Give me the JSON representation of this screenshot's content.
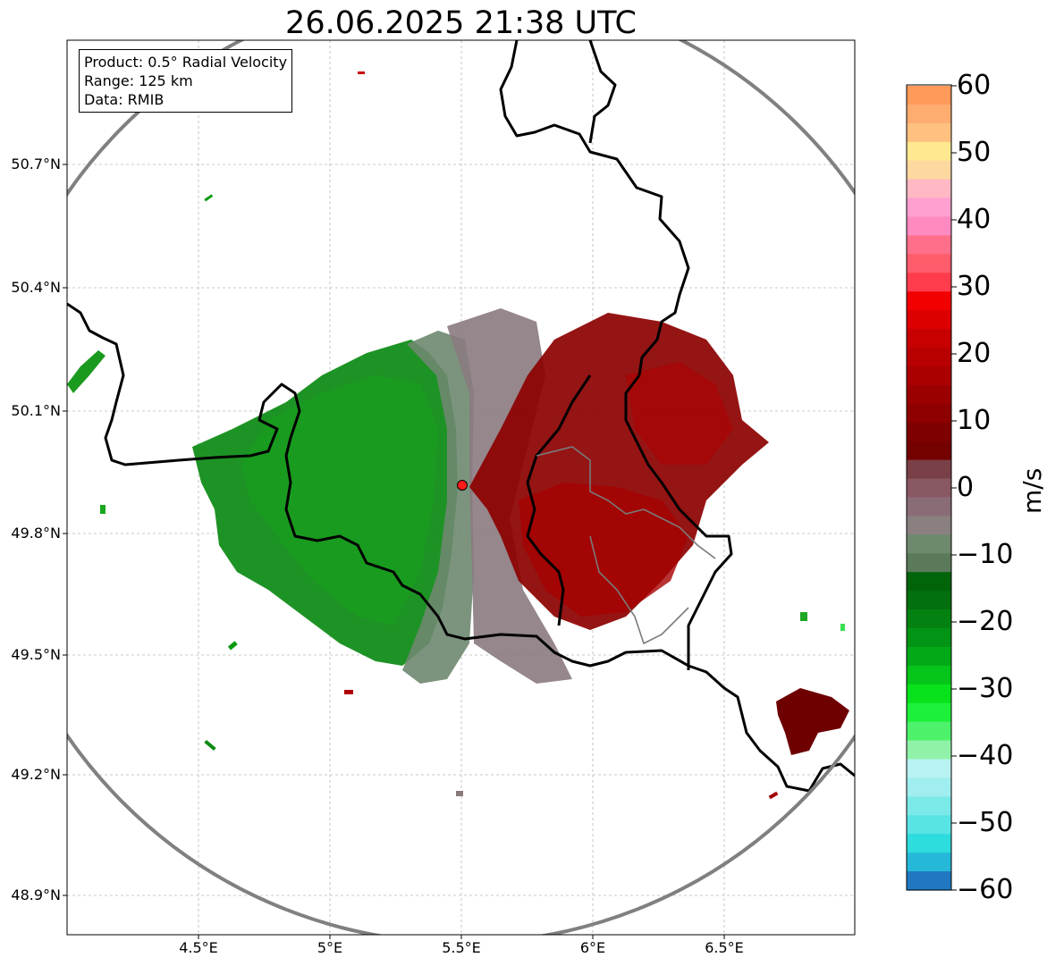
{
  "title": "26.06.2025 21:38 UTC",
  "info_box": {
    "product": "Product: 0.5° Radial Velocity",
    "range": "Range: 125 km",
    "data": "Data: RMIB"
  },
  "map": {
    "lat_labels": [
      "50.7°N",
      "50.4°N",
      "50.1°N",
      "49.8°N",
      "49.5°N",
      "49.2°N",
      "48.9°N"
    ],
    "lon_labels": [
      "4.5°E",
      "5°E",
      "5.5°E",
      "6°E",
      "6.5°E"
    ],
    "radar_site": {
      "lon": 5.5,
      "lat": 49.92
    },
    "range_ring_km": 125
  },
  "colorbar": {
    "unit": "m/s",
    "ticks": [
      "60",
      "50",
      "40",
      "30",
      "20",
      "10",
      "0",
      "−10",
      "−20",
      "−30",
      "−40",
      "−50",
      "−60"
    ],
    "range": [
      -60,
      60
    ],
    "colors": [
      "#1f78c1",
      "#25b8d8",
      "#2ddcdc",
      "#58e4e4",
      "#7ce9e9",
      "#a0eef0",
      "#b8f2f2",
      "#8ff2a8",
      "#4df26a",
      "#1df03a",
      "#07e21c",
      "#05c41a",
      "#03aa17",
      "#029414",
      "#038211",
      "#02700e",
      "#016409",
      "#5a7a5a",
      "#6e8a6e",
      "#8a8080",
      "#8a6c76",
      "#8a5862",
      "#7a4048",
      "#740000",
      "#7f0000",
      "#8e0000",
      "#9b0000",
      "#aa0000",
      "#b80000",
      "#c90000",
      "#dd0000",
      "#f20000",
      "#ff3c4c",
      "#ff5c6c",
      "#ff6f8a",
      "#ff8ac0",
      "#ffa0d0",
      "#ffb8c4",
      "#ffd8a0",
      "#ffe890",
      "#ffc080",
      "#ffac70",
      "#ff9a58"
    ]
  }
}
